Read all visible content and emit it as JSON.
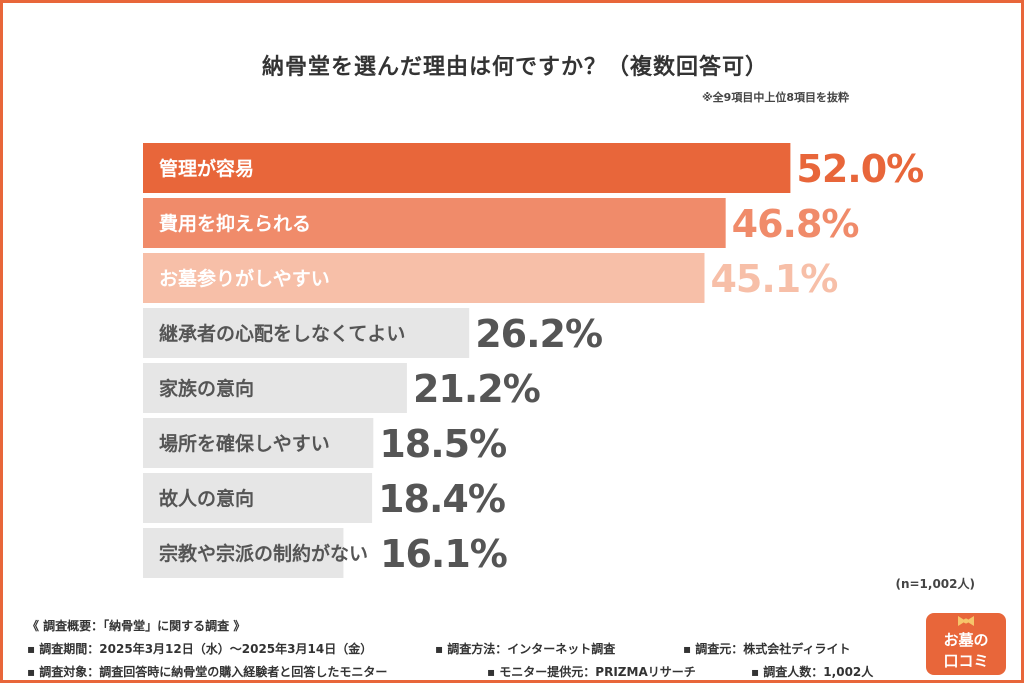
{
  "title": "納骨堂を選んだ理由は何ですか？（複数回答可）",
  "note": "※全9項目中上位8項目を抜粋",
  "sample_size": "(n=1,002人)",
  "footer": {
    "heading": "《 調査概要：「納骨堂」に関する調査 》",
    "items": [
      [
        "▪ 調査期間：2025年3月12日（水）〜2025年3月14日（金）",
        "▪ 調査方法：インターネット調査",
        "▪ 調査元：株式会社ディライト"
      ],
      [
        "▪ 調査対象：調査回答時に納骨堂の購入経験者と回答したモニター",
        "▪ モニター提供元：PRIZMAリサーチ",
        "▪ 調査人数：1,002人"
      ]
    ]
  },
  "logo": {
    "line1": "お墓の",
    "line2": "口コミ",
    "icon": "ribbon-bow-icon"
  },
  "colors": {
    "frame": "#E8663A",
    "top1": "#E8663A",
    "top2": "#F08B6A",
    "top3": "#F7BFA8",
    "other": "#E6E6E6",
    "other_text": "#555555",
    "value_dark": "#555555"
  },
  "chart_data": {
    "type": "bar",
    "orientation": "horizontal",
    "categories": [
      "管理が容易",
      "費用を抑えられる",
      "お墓参りがしやすい",
      "継承者の心配をしなくてよい",
      "家族の意向",
      "場所を確保しやすい",
      "故人の意向",
      "宗教や宗派の制約がない"
    ],
    "values": [
      52.0,
      46.8,
      45.1,
      26.2,
      21.2,
      18.5,
      18.4,
      16.1
    ],
    "value_labels": [
      "52.0%",
      "46.8%",
      "45.1%",
      "26.2%",
      "21.2%",
      "18.5%",
      "18.4%",
      "16.1%"
    ],
    "unit": "%",
    "xlim": [
      0,
      100
    ],
    "grid": false,
    "legend": "none"
  }
}
